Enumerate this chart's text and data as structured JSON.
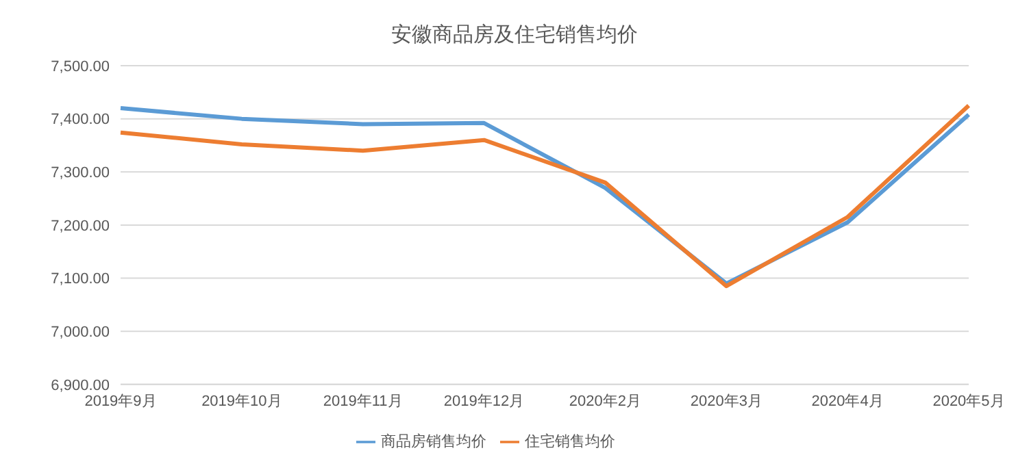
{
  "chart_data": {
    "type": "line",
    "title": "安徽商品房及住宅销售均价",
    "categories": [
      "2019年9月",
      "2019年10月",
      "2019年11月",
      "2019年12月",
      "2020年2月",
      "2020年3月",
      "2020年4月",
      "2020年5月"
    ],
    "series": [
      {
        "name": "商品房销售均价",
        "color": "#5b9bd5",
        "values": [
          7420,
          7400,
          7390,
          7392,
          7270,
          7090,
          7205,
          7408
        ]
      },
      {
        "name": "住宅销售均价",
        "color": "#ed7d31",
        "values": [
          7374,
          7352,
          7340,
          7360,
          7280,
          7085,
          7215,
          7425
        ]
      }
    ],
    "ylim": [
      6900,
      7500
    ],
    "yticks": [
      {
        "value": 6900,
        "label": "6,900.00"
      },
      {
        "value": 7000,
        "label": "7,000.00"
      },
      {
        "value": 7100,
        "label": "7,100.00"
      },
      {
        "value": 7200,
        "label": "7,200.00"
      },
      {
        "value": 7300,
        "label": "7,300.00"
      },
      {
        "value": 7400,
        "label": "7,400.00"
      },
      {
        "value": 7500,
        "label": "7,500.00"
      }
    ],
    "grid": "y",
    "legend": "bottom",
    "marker": "none",
    "line_style": "solid"
  }
}
